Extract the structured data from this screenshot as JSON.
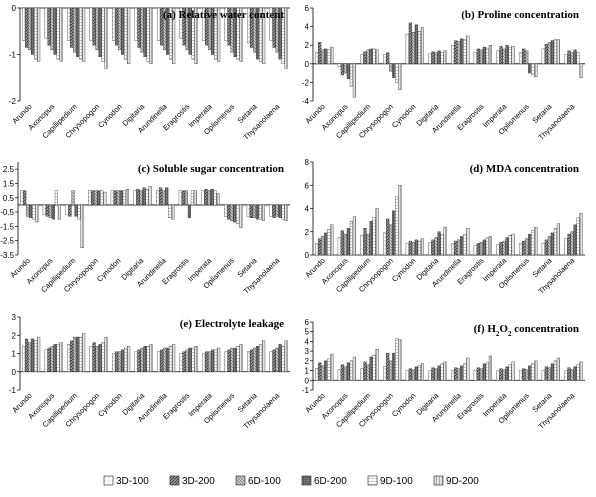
{
  "legend": [
    "3D-100",
    "3D-200",
    "6D-100",
    "6D-200",
    "9D-100",
    "9D-200"
  ],
  "chart_data": [
    {
      "type": "bar",
      "title": "(a) Relative water content",
      "ylim": [
        -2,
        0
      ],
      "yticks": [
        -2,
        -1,
        0
      ],
      "categories": [
        "Arundo",
        "Axonopus",
        "Capillipedium",
        "Chrysopogon",
        "Cynodon",
        "Digitaria",
        "Arundinella",
        "Eragrostis",
        "Imperata",
        "Oplismenus",
        "Setaria",
        "Thysanolaena"
      ],
      "series": [
        {
          "name": "3D-100",
          "values": [
            -0.7,
            -0.65,
            -0.7,
            -0.7,
            -0.7,
            -0.7,
            -0.7,
            -0.65,
            -0.7,
            -0.7,
            -0.75,
            -0.7
          ]
        },
        {
          "name": "3D-200",
          "values": [
            -0.85,
            -0.8,
            -0.85,
            -0.8,
            -0.8,
            -0.85,
            -0.8,
            -0.8,
            -0.8,
            -0.8,
            -0.85,
            -0.85
          ]
        },
        {
          "name": "6D-100",
          "values": [
            -0.9,
            -0.9,
            -0.95,
            -0.9,
            -0.9,
            -0.95,
            -0.9,
            -0.9,
            -0.9,
            -0.95,
            -0.95,
            -0.95
          ]
        },
        {
          "name": "6D-200",
          "values": [
            -1.0,
            -1.0,
            -1.05,
            -1.05,
            -1.0,
            -1.05,
            -1.0,
            -1.0,
            -1.0,
            -1.05,
            -1.1,
            -1.1
          ]
        },
        {
          "name": "9D-100",
          "values": [
            -1.1,
            -1.1,
            -1.1,
            -1.15,
            -1.1,
            -1.15,
            -1.1,
            -1.1,
            -1.1,
            -1.1,
            -1.15,
            -1.2
          ]
        },
        {
          "name": "9D-200",
          "values": [
            -1.15,
            -1.15,
            -1.15,
            -1.3,
            -1.2,
            -1.2,
            -1.2,
            -1.2,
            -1.15,
            -1.15,
            -1.2,
            -1.3
          ]
        }
      ]
    },
    {
      "type": "bar",
      "title": "(b) Proline concentration",
      "ylim": [
        -4,
        6
      ],
      "yticks": [
        -4,
        -2,
        0,
        2,
        4,
        6
      ],
      "categories": [
        "Arundo",
        "Axonopus",
        "Capillipedium",
        "Chrysopogon",
        "Cynodon",
        "Digitaria",
        "Arundinella",
        "Eragrostis",
        "Imperata",
        "Oplismenus",
        "Setaria",
        "Thysanolaena"
      ],
      "series": [
        {
          "name": "3D-100",
          "values": [
            1.2,
            -0.3,
            1.0,
            1.0,
            3.2,
            1.1,
            2.0,
            1.2,
            1.4,
            1.2,
            1.6,
            1.0
          ]
        },
        {
          "name": "3D-200",
          "values": [
            2.3,
            -1.2,
            1.3,
            1.2,
            4.4,
            1.3,
            2.5,
            1.6,
            1.9,
            1.6,
            2.1,
            1.4
          ]
        },
        {
          "name": "6D-100",
          "values": [
            1.5,
            -1.0,
            1.5,
            -0.8,
            3.4,
            1.2,
            2.4,
            1.5,
            1.6,
            1.4,
            2.3,
            1.2
          ]
        },
        {
          "name": "6D-200",
          "values": [
            1.6,
            -1.6,
            1.6,
            -1.5,
            4.2,
            1.4,
            2.7,
            1.8,
            2.0,
            -1.0,
            2.5,
            1.5
          ]
        },
        {
          "name": "9D-100",
          "values": [
            1.5,
            -2.4,
            1.6,
            -2.0,
            3.5,
            1.2,
            2.6,
            1.7,
            1.8,
            -1.2,
            2.6,
            1.2
          ]
        },
        {
          "name": "9D-200",
          "values": [
            1.8,
            -3.6,
            1.5,
            -2.8,
            3.9,
            1.4,
            3.0,
            2.0,
            1.9,
            -1.4,
            2.6,
            -1.5
          ]
        }
      ]
    },
    {
      "type": "bar",
      "title": "(c) Soluble sugar concentration",
      "ylim": [
        -3.5,
        3
      ],
      "yticks": [
        -3.5,
        -2.5,
        -1.5,
        -0.5,
        0.5,
        1.5,
        2.5
      ],
      "categories": [
        "Arundo",
        "Axonopus",
        "Capillipedium",
        "Chrysopogon",
        "Cynodon",
        "Digitaria",
        "Arundinella",
        "Eragrostis",
        "Imperata",
        "Oplismenus",
        "Setaria",
        "Thysanolaena"
      ],
      "series": [
        {
          "name": "3D-100",
          "values": [
            1.0,
            -0.7,
            -0.7,
            1.0,
            1.0,
            1.0,
            1.0,
            1.0,
            1.0,
            -0.8,
            -0.8,
            -0.8
          ]
        },
        {
          "name": "3D-200",
          "values": [
            1.0,
            -0.8,
            -0.8,
            1.0,
            1.0,
            1.1,
            1.2,
            1.0,
            1.1,
            -1.0,
            -0.9,
            -0.9
          ]
        },
        {
          "name": "6D-100",
          "values": [
            -0.8,
            -0.9,
            1.0,
            1.0,
            1.0,
            1.0,
            1.0,
            1.0,
            1.0,
            -1.1,
            -0.9,
            -0.8
          ]
        },
        {
          "name": "6D-200",
          "values": [
            -0.9,
            -1.0,
            -0.8,
            1.0,
            1.0,
            1.2,
            1.2,
            -0.9,
            1.1,
            -1.2,
            -1.0,
            -0.9
          ]
        },
        {
          "name": "9D-100",
          "values": [
            -1.0,
            1.0,
            -1.0,
            1.0,
            1.0,
            1.1,
            -0.9,
            1.0,
            1.0,
            -1.3,
            -1.0,
            -1.0
          ]
        },
        {
          "name": "9D-200",
          "values": [
            -1.2,
            -1.0,
            -3.0,
            0.9,
            1.1,
            1.3,
            -1.0,
            1.0,
            0.8,
            -1.6,
            -1.1,
            -1.1
          ]
        }
      ]
    },
    {
      "type": "bar",
      "title": "(d) MDA concentration",
      "ylim": [
        0,
        8
      ],
      "yticks": [
        0,
        2,
        4,
        6,
        8
      ],
      "categories": [
        "Arundo",
        "Axonopus",
        "Capillipedium",
        "Chrysopogon",
        "Cynodon",
        "Digitaria",
        "Arundinella",
        "Eragrostis",
        "Imperata",
        "Oplismenus",
        "Setaria",
        "Thysanolaena"
      ],
      "series": [
        {
          "name": "3D-100",
          "values": [
            1.0,
            1.5,
            1.7,
            1.9,
            1.0,
            1.1,
            1.0,
            0.8,
            0.9,
            1.0,
            1.0,
            1.4
          ]
        },
        {
          "name": "3D-200",
          "values": [
            1.4,
            2.1,
            2.3,
            3.1,
            1.2,
            1.3,
            1.2,
            1.0,
            1.1,
            1.2,
            1.3,
            1.8
          ]
        },
        {
          "name": "6D-100",
          "values": [
            1.6,
            1.8,
            1.8,
            2.6,
            1.1,
            1.5,
            1.3,
            1.1,
            1.2,
            1.4,
            1.6,
            2.0
          ]
        },
        {
          "name": "6D-200",
          "values": [
            1.9,
            2.3,
            2.9,
            3.8,
            1.3,
            2.0,
            1.6,
            1.3,
            1.5,
            1.8,
            1.9,
            2.6
          ]
        },
        {
          "name": "9D-100",
          "values": [
            2.2,
            2.9,
            3.2,
            5.0,
            1.2,
            1.8,
            1.8,
            1.5,
            1.7,
            2.1,
            2.3,
            3.2
          ]
        },
        {
          "name": "9D-200",
          "values": [
            2.6,
            3.3,
            4.0,
            6.0,
            1.4,
            2.4,
            2.3,
            1.6,
            1.8,
            2.4,
            2.7,
            3.6
          ]
        }
      ]
    },
    {
      "type": "bar",
      "title": "(e) Electrolyte leakage",
      "ylim": [
        -1,
        3
      ],
      "yticks": [
        -1,
        0,
        1,
        2,
        3
      ],
      "categories": [
        "Arundo",
        "Axonopus",
        "Capillipedium",
        "Chrysopogon",
        "Cynodon",
        "Digitaria",
        "Arundinella",
        "Eragrostis",
        "Imperata",
        "Oplismenus",
        "Setaria",
        "Thysanolaena"
      ],
      "series": [
        {
          "name": "3D-100",
          "values": [
            1.4,
            1.2,
            1.5,
            1.4,
            1.0,
            1.1,
            1.1,
            1.0,
            1.0,
            1.1,
            1.1,
            1.1
          ]
        },
        {
          "name": "3D-200",
          "values": [
            1.8,
            1.3,
            1.7,
            1.6,
            1.1,
            1.2,
            1.2,
            1.1,
            1.1,
            1.2,
            1.2,
            1.2
          ]
        },
        {
          "name": "6D-100",
          "values": [
            1.6,
            1.4,
            1.9,
            1.4,
            1.1,
            1.3,
            1.3,
            1.2,
            1.1,
            1.3,
            1.3,
            1.3
          ]
        },
        {
          "name": "6D-200",
          "values": [
            1.8,
            1.5,
            1.9,
            1.5,
            1.2,
            1.4,
            1.3,
            1.3,
            1.2,
            1.3,
            1.4,
            1.5
          ]
        },
        {
          "name": "9D-100",
          "values": [
            1.7,
            1.5,
            1.9,
            1.6,
            1.3,
            1.4,
            1.4,
            1.3,
            1.2,
            1.4,
            1.5,
            1.4
          ]
        },
        {
          "name": "9D-200",
          "values": [
            1.9,
            1.6,
            2.1,
            1.9,
            1.4,
            1.5,
            1.5,
            1.4,
            1.3,
            1.5,
            1.7,
            1.7
          ]
        }
      ]
    },
    {
      "type": "bar",
      "title": "(f) H2O2 concentration",
      "ylim": [
        -1,
        6
      ],
      "yticks": [
        -1,
        0,
        1,
        2,
        3,
        4,
        5,
        6
      ],
      "categories": [
        "Arundo",
        "Axonopus",
        "Capillipedium",
        "Chrysopogon",
        "Cynodon",
        "Digitaria",
        "Arundinella",
        "Eragrostis",
        "Imperata",
        "Oplismenus",
        "Setaria",
        "Thysanolaena"
      ],
      "series": [
        {
          "name": "3D-100",
          "values": [
            1.2,
            1.1,
            1.2,
            1.4,
            1.0,
            1.0,
            1.0,
            1.0,
            1.0,
            1.0,
            1.0,
            1.0
          ]
        },
        {
          "name": "3D-200",
          "values": [
            1.8,
            1.6,
            1.9,
            2.8,
            1.2,
            1.3,
            1.3,
            1.3,
            1.2,
            1.2,
            1.4,
            1.3
          ]
        },
        {
          "name": "6D-100",
          "values": [
            1.5,
            1.4,
            1.6,
            2.0,
            1.1,
            1.2,
            1.2,
            1.2,
            1.1,
            1.1,
            1.3,
            1.1
          ]
        },
        {
          "name": "6D-200",
          "values": [
            2.0,
            1.8,
            2.4,
            2.8,
            1.4,
            1.5,
            1.5,
            1.7,
            1.4,
            1.5,
            1.7,
            1.4
          ]
        },
        {
          "name": "9D-100",
          "values": [
            2.2,
            2.0,
            2.6,
            4.3,
            1.5,
            1.7,
            1.7,
            1.8,
            1.6,
            1.7,
            2.0,
            1.6
          ]
        },
        {
          "name": "9D-200",
          "values": [
            2.7,
            2.4,
            3.2,
            4.2,
            1.7,
            1.9,
            2.3,
            2.5,
            1.9,
            2.0,
            2.3,
            1.9
          ]
        }
      ]
    }
  ]
}
